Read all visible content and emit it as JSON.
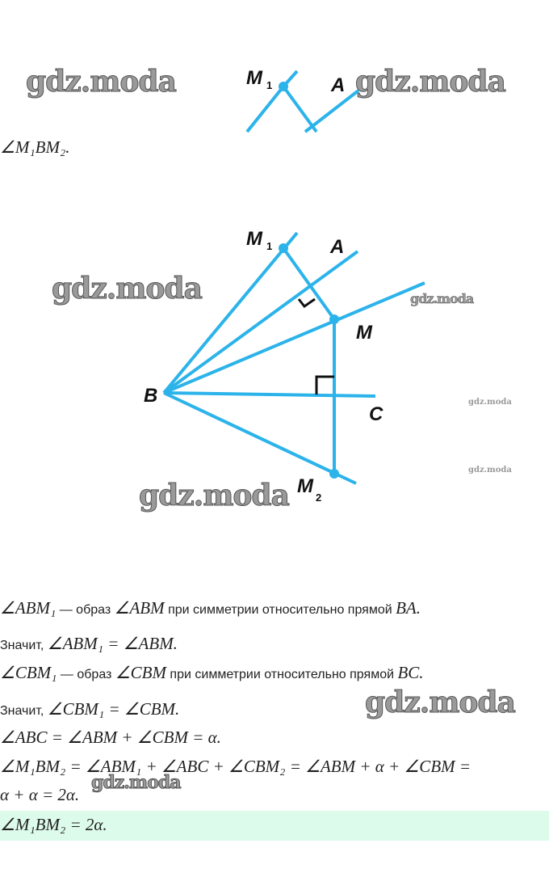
{
  "watermark": "gdz.moda",
  "diagram_color": "#2bb3ea",
  "highlight_color": "#ddfbea",
  "top_diagram": {
    "labels": {
      "m1": "M",
      "m1_sub": "1",
      "a": "A"
    }
  },
  "caption_top": "∠M₁BM₂.",
  "main_diagram": {
    "labels": {
      "m1": "M",
      "m1_sub": "1",
      "a": "A",
      "m": "M",
      "b": "B",
      "c": "C",
      "m2": "M",
      "m2_sub": "2"
    }
  },
  "lines": [
    {
      "math1": "∠ABM₁",
      "text1": " — образ ",
      "math2": "∠ABM",
      "text2": " при симметрии относительно прямой ",
      "math3": "BA."
    },
    {
      "text0": "Значит, ",
      "math1": "∠ABM₁ = ∠ABM."
    },
    {
      "math1": "∠CBM₁",
      "text1": " — образ ",
      "math2": "∠CBM",
      "text2": " при симметрии относительно прямой ",
      "math3": "BC."
    },
    {
      "text0": "Значит, ",
      "math1": "∠CBM₁ = ∠CBM."
    },
    {
      "math1": "∠ABC = ∠ABM + ∠CBM = α."
    },
    {
      "math1": "∠M₁BM₂ = ∠ABM₁ + ∠ABC + ∠CBM₂ = ∠ABM + α + ∠CBM ="
    },
    {
      "math1": "α + α = 2α."
    }
  ],
  "answer": "∠M₁BM₂ = 2α."
}
